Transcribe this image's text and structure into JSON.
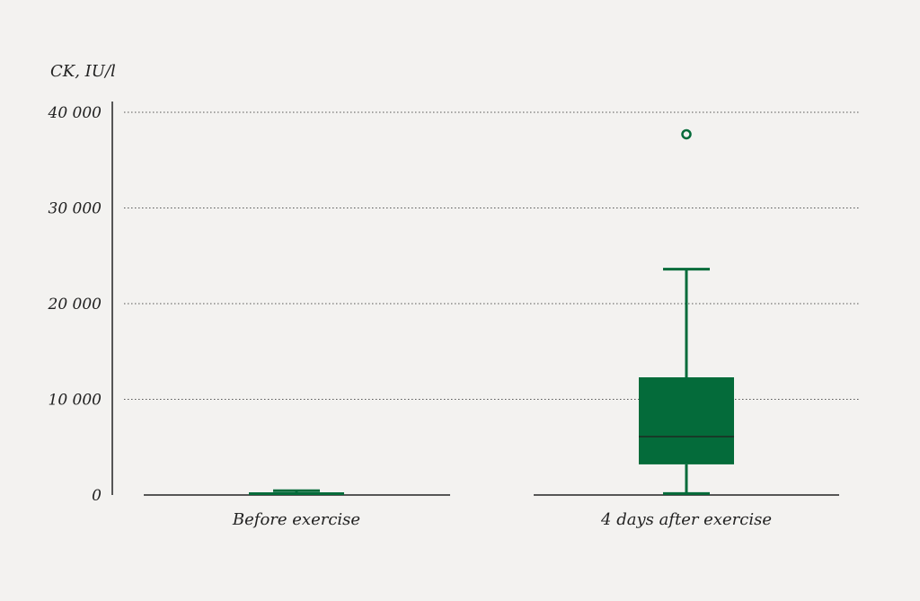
{
  "chart_data": {
    "type": "box",
    "ylabel": "CK, IU/l",
    "ylim": [
      0,
      40000
    ],
    "yticks": [
      0,
      10000,
      20000,
      30000,
      40000
    ],
    "ytick_labels": [
      "0",
      "10 000",
      "20 000",
      "30 000",
      "40 000"
    ],
    "grid": "horizontal dotted",
    "categories": [
      "Before exercise",
      "4 days after exercise"
    ],
    "boxes": [
      {
        "category": "Before exercise",
        "min": 0,
        "q1": 0,
        "median": 150,
        "q3": 250,
        "max": 450,
        "outliers": []
      },
      {
        "category": "4 days after exercise",
        "min": 150,
        "q1": 3200,
        "median": 6100,
        "q3": 12300,
        "max": 23600,
        "outliers": [
          37700
        ]
      }
    ],
    "colors": {
      "box": "#046b3a",
      "median": "#1f2a22",
      "axis": "#222222",
      "grid": "#555555",
      "background": "#f3f2f0"
    }
  }
}
